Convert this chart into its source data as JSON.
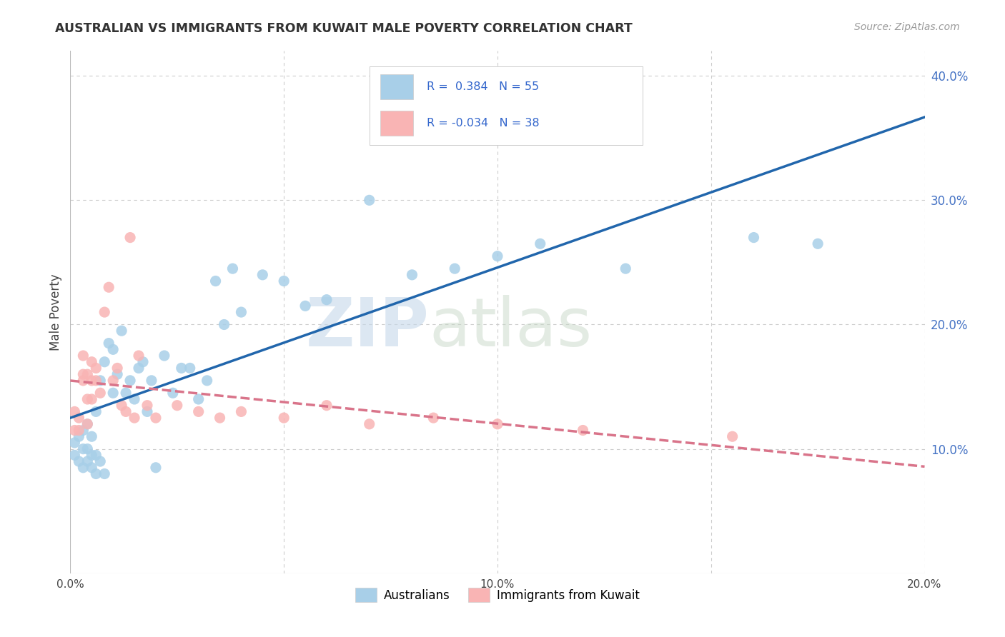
{
  "title": "AUSTRALIAN VS IMMIGRANTS FROM KUWAIT MALE POVERTY CORRELATION CHART",
  "source": "Source: ZipAtlas.com",
  "ylabel": "Male Poverty",
  "watermark_zip": "ZIP",
  "watermark_atlas": "atlas",
  "xlim": [
    0.0,
    0.2
  ],
  "ylim": [
    0.0,
    0.42
  ],
  "xticks": [
    0.0,
    0.05,
    0.1,
    0.15,
    0.2
  ],
  "yticks": [
    0.0,
    0.1,
    0.2,
    0.3,
    0.4
  ],
  "xtick_labels": [
    "0.0%",
    "",
    "10.0%",
    "",
    "20.0%"
  ],
  "ytick_labels_right": [
    "10.0%",
    "20.0%",
    "30.0%",
    "40.0%"
  ],
  "R_australian": 0.384,
  "N_australian": 55,
  "R_kuwait": -0.034,
  "N_kuwait": 38,
  "color_australian": "#a8cfe8",
  "color_kuwait": "#f9b4b4",
  "color_line_australian": "#2166ac",
  "color_line_kuwait": "#d9748a",
  "legend_label_australian": "Australians",
  "legend_label_kuwait": "Immigrants from Kuwait",
  "background_color": "#ffffff",
  "grid_color": "#cccccc",
  "aus_x": [
    0.001,
    0.001,
    0.002,
    0.002,
    0.003,
    0.003,
    0.003,
    0.004,
    0.004,
    0.004,
    0.005,
    0.005,
    0.005,
    0.006,
    0.006,
    0.006,
    0.007,
    0.007,
    0.008,
    0.008,
    0.009,
    0.01,
    0.01,
    0.011,
    0.012,
    0.013,
    0.014,
    0.015,
    0.016,
    0.017,
    0.018,
    0.019,
    0.02,
    0.022,
    0.024,
    0.026,
    0.028,
    0.03,
    0.032,
    0.034,
    0.036,
    0.038,
    0.04,
    0.045,
    0.05,
    0.055,
    0.06,
    0.07,
    0.08,
    0.09,
    0.1,
    0.11,
    0.13,
    0.16,
    0.175
  ],
  "aus_y": [
    0.095,
    0.105,
    0.09,
    0.11,
    0.085,
    0.1,
    0.115,
    0.09,
    0.1,
    0.12,
    0.085,
    0.095,
    0.11,
    0.08,
    0.095,
    0.13,
    0.09,
    0.155,
    0.08,
    0.17,
    0.185,
    0.145,
    0.18,
    0.16,
    0.195,
    0.145,
    0.155,
    0.14,
    0.165,
    0.17,
    0.13,
    0.155,
    0.085,
    0.175,
    0.145,
    0.165,
    0.165,
    0.14,
    0.155,
    0.235,
    0.2,
    0.245,
    0.21,
    0.24,
    0.235,
    0.215,
    0.22,
    0.3,
    0.24,
    0.245,
    0.255,
    0.265,
    0.245,
    0.27,
    0.265
  ],
  "kuw_x": [
    0.001,
    0.001,
    0.002,
    0.002,
    0.003,
    0.003,
    0.003,
    0.004,
    0.004,
    0.004,
    0.005,
    0.005,
    0.005,
    0.006,
    0.006,
    0.007,
    0.008,
    0.009,
    0.01,
    0.011,
    0.012,
    0.013,
    0.014,
    0.015,
    0.016,
    0.018,
    0.02,
    0.025,
    0.03,
    0.035,
    0.04,
    0.05,
    0.06,
    0.07,
    0.085,
    0.1,
    0.12,
    0.155
  ],
  "kuw_y": [
    0.115,
    0.13,
    0.125,
    0.115,
    0.155,
    0.175,
    0.16,
    0.14,
    0.12,
    0.16,
    0.14,
    0.155,
    0.17,
    0.155,
    0.165,
    0.145,
    0.21,
    0.23,
    0.155,
    0.165,
    0.135,
    0.13,
    0.27,
    0.125,
    0.175,
    0.135,
    0.125,
    0.135,
    0.13,
    0.125,
    0.13,
    0.125,
    0.135,
    0.12,
    0.125,
    0.12,
    0.115,
    0.11
  ]
}
